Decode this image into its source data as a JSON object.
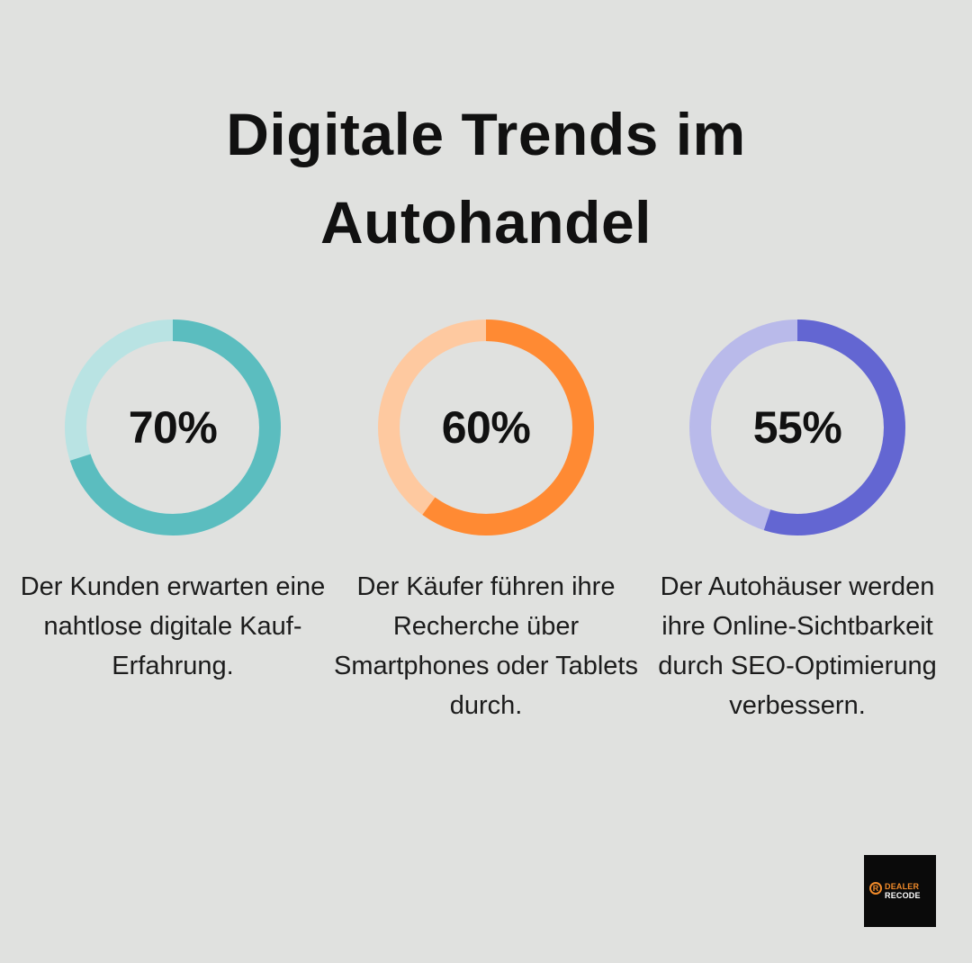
{
  "title": "Digitale Trends im Autohandel",
  "chart_data": {
    "type": "donut",
    "title": "Digitale Trends im Autohandel",
    "items": [
      {
        "value": 70,
        "label": "70%",
        "description": "Der Kunden erwarten eine nahtlose digitale Kauf-Erfahrung.",
        "color": "#5bbdbf",
        "track_color": "#b9e3e3"
      },
      {
        "value": 60,
        "label": "60%",
        "description": "Der Käufer führen ihre Recherche über Smartphones oder Tablets durch.",
        "color": "#ff8a33",
        "track_color": "#fec9a0"
      },
      {
        "value": 55,
        "label": "55%",
        "description": "Der Autohäuser werden ihre Online-Sichtbarkeit durch SEO-Optimierung verbessern.",
        "color": "#6366d2",
        "track_color": "#b9baea"
      }
    ]
  },
  "logo": {
    "mark": "R",
    "line1": "DEALER",
    "line2": "RECODE",
    "accent_color": "#f08a2a"
  }
}
